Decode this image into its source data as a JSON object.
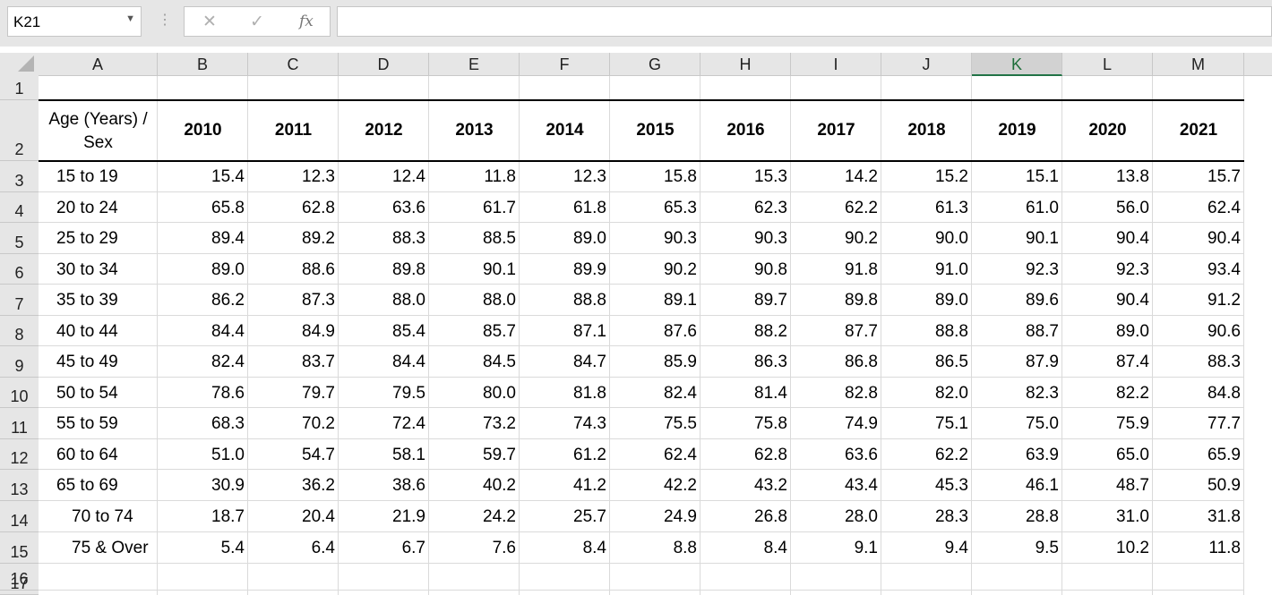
{
  "name_box": "K21",
  "formula_bar": {
    "cancel": "✕",
    "confirm": "✓",
    "fx": "fx",
    "value": ""
  },
  "columns": [
    "A",
    "B",
    "C",
    "D",
    "E",
    "F",
    "G",
    "H",
    "I",
    "J",
    "K",
    "L",
    "M"
  ],
  "selected_column": "K",
  "rows": [
    "1",
    "2",
    "3",
    "4",
    "5",
    "6",
    "7",
    "8",
    "9",
    "10",
    "11",
    "12",
    "13",
    "14",
    "15",
    "16",
    "17"
  ],
  "header": {
    "label_line1": "Age (Years) /",
    "label_line2": "Sex",
    "years": [
      "2010",
      "2011",
      "2012",
      "2013",
      "2014",
      "2015",
      "2016",
      "2017",
      "2018",
      "2019",
      "2020",
      "2021"
    ]
  },
  "data": [
    {
      "age": "15 to 19",
      "values": [
        "15.4",
        "12.3",
        "12.4",
        "11.8",
        "12.3",
        "15.8",
        "15.3",
        "14.2",
        "15.2",
        "15.1",
        "13.8",
        "15.7"
      ]
    },
    {
      "age": "20 to 24",
      "values": [
        "65.8",
        "62.8",
        "63.6",
        "61.7",
        "61.8",
        "65.3",
        "62.3",
        "62.2",
        "61.3",
        "61.0",
        "56.0",
        "62.4"
      ]
    },
    {
      "age": "25 to 29",
      "values": [
        "89.4",
        "89.2",
        "88.3",
        "88.5",
        "89.0",
        "90.3",
        "90.3",
        "90.2",
        "90.0",
        "90.1",
        "90.4",
        "90.4"
      ]
    },
    {
      "age": "30 to 34",
      "values": [
        "89.0",
        "88.6",
        "89.8",
        "90.1",
        "89.9",
        "90.2",
        "90.8",
        "91.8",
        "91.0",
        "92.3",
        "92.3",
        "93.4"
      ]
    },
    {
      "age": "35 to 39",
      "values": [
        "86.2",
        "87.3",
        "88.0",
        "88.0",
        "88.8",
        "89.1",
        "89.7",
        "89.8",
        "89.0",
        "89.6",
        "90.4",
        "91.2"
      ]
    },
    {
      "age": "40 to 44",
      "values": [
        "84.4",
        "84.9",
        "85.4",
        "85.7",
        "87.1",
        "87.6",
        "88.2",
        "87.7",
        "88.8",
        "88.7",
        "89.0",
        "90.6"
      ]
    },
    {
      "age": "45 to 49",
      "values": [
        "82.4",
        "83.7",
        "84.4",
        "84.5",
        "84.7",
        "85.9",
        "86.3",
        "86.8",
        "86.5",
        "87.9",
        "87.4",
        "88.3"
      ]
    },
    {
      "age": "50 to 54",
      "values": [
        "78.6",
        "79.7",
        "79.5",
        "80.0",
        "81.8",
        "82.4",
        "81.4",
        "82.8",
        "82.0",
        "82.3",
        "82.2",
        "84.8"
      ]
    },
    {
      "age": "55 to 59",
      "values": [
        "68.3",
        "70.2",
        "72.4",
        "73.2",
        "74.3",
        "75.5",
        "75.8",
        "74.9",
        "75.1",
        "75.0",
        "75.9",
        "77.7"
      ]
    },
    {
      "age": "60 to 64",
      "values": [
        "51.0",
        "54.7",
        "58.1",
        "59.7",
        "61.2",
        "62.4",
        "62.8",
        "63.6",
        "62.2",
        "63.9",
        "65.0",
        "65.9"
      ]
    },
    {
      "age": "65 to 69",
      "values": [
        "30.9",
        "36.2",
        "38.6",
        "40.2",
        "41.2",
        "42.2",
        "43.2",
        "43.4",
        "45.3",
        "46.1",
        "48.7",
        "50.9"
      ]
    },
    {
      "age": "70 to 74",
      "values": [
        "18.7",
        "20.4",
        "21.9",
        "24.2",
        "25.7",
        "24.9",
        "26.8",
        "28.0",
        "28.3",
        "28.8",
        "31.0",
        "31.8"
      ]
    },
    {
      "age": "75 & Over",
      "values": [
        "5.4",
        "6.4",
        "6.7",
        "7.6",
        "8.4",
        "8.8",
        "8.4",
        "9.1",
        "9.4",
        "9.5",
        "10.2",
        "11.8"
      ]
    }
  ]
}
